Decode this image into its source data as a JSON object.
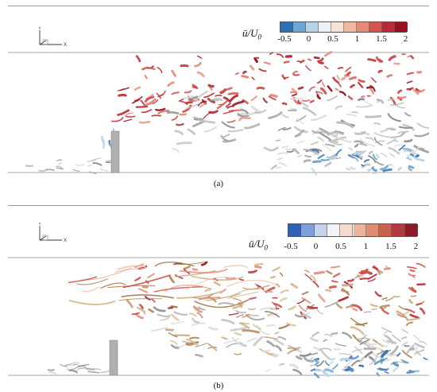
{
  "panels": [
    {
      "id": "a",
      "caption": "(a)",
      "axes_icon": {
        "y_label": "Y",
        "x_label": "X"
      },
      "colorbar": {
        "label_main": "ū/U",
        "label_sub": "0",
        "ticks": [
          "-0.5",
          "0",
          "0.5",
          "1",
          "1.5",
          "2"
        ],
        "colors": [
          "#2c6fb2",
          "#6ea6d1",
          "#b7d3e8",
          "#eef2f6",
          "#f7e2d6",
          "#f2b8a0",
          "#e48a76",
          "#d3564e",
          "#b82a37",
          "#98101f"
        ]
      }
    },
    {
      "id": "b",
      "caption": "(b)",
      "axes_icon": {
        "y_label": "Y",
        "x_label": "X"
      },
      "colorbar": {
        "label_main": "ū/U",
        "label_sub": "0",
        "ticks": [
          "-0.5",
          "0",
          "0.5",
          "1",
          "1.5",
          "2"
        ],
        "colors": [
          "#2f5fb8",
          "#7ea0d6",
          "#c4d4ec",
          "#f4f4f6",
          "#f4dccf",
          "#eab59b",
          "#dd8e70",
          "#cc6150",
          "#b33a3f",
          "#8b1a2a"
        ]
      }
    }
  ]
}
